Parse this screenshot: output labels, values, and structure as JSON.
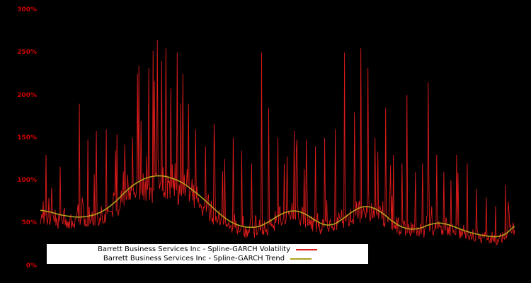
{
  "figure": {
    "background": "#000000"
  },
  "chart_data": {
    "type": "line",
    "title": "",
    "xlabel": "",
    "ylabel": "",
    "ylim": [
      0,
      300
    ],
    "y_unit": "percent",
    "grid": false,
    "legend_position": "lower center",
    "yticks": [
      {
        "label": "300%",
        "value": 300
      },
      {
        "label": "250%",
        "value": 250
      },
      {
        "label": "200%",
        "value": 200
      },
      {
        "label": "150%",
        "value": 150
      },
      {
        "label": "100%",
        "value": 100
      },
      {
        "label": "50%",
        "value": 50
      },
      {
        "label": "0%",
        "value": 0
      }
    ],
    "series": [
      {
        "name": "Barrett Business Services Inc - Spline-GARCH Volatility",
        "color": "#dd1b1b",
        "style": "jagged"
      },
      {
        "name": "Barrett Business Services Inc - Spline-GARCH Trend",
        "color": "#b0a11c",
        "style": "smooth"
      }
    ],
    "trend_points": [
      [
        0.0,
        65
      ],
      [
        0.02,
        63
      ],
      [
        0.04,
        60
      ],
      [
        0.06,
        58
      ],
      [
        0.08,
        57
      ],
      [
        0.1,
        58
      ],
      [
        0.12,
        61
      ],
      [
        0.14,
        67
      ],
      [
        0.16,
        76
      ],
      [
        0.18,
        87
      ],
      [
        0.2,
        96
      ],
      [
        0.22,
        102
      ],
      [
        0.24,
        105
      ],
      [
        0.26,
        105
      ],
      [
        0.28,
        102
      ],
      [
        0.3,
        97
      ],
      [
        0.32,
        89
      ],
      [
        0.34,
        80
      ],
      [
        0.36,
        70
      ],
      [
        0.38,
        60
      ],
      [
        0.4,
        52
      ],
      [
        0.42,
        47
      ],
      [
        0.44,
        45
      ],
      [
        0.46,
        46
      ],
      [
        0.48,
        51
      ],
      [
        0.5,
        58
      ],
      [
        0.52,
        63
      ],
      [
        0.54,
        64
      ],
      [
        0.56,
        60
      ],
      [
        0.58,
        53
      ],
      [
        0.6,
        48
      ],
      [
        0.62,
        49
      ],
      [
        0.64,
        56
      ],
      [
        0.66,
        64
      ],
      [
        0.68,
        69
      ],
      [
        0.7,
        68
      ],
      [
        0.72,
        62
      ],
      [
        0.74,
        53
      ],
      [
        0.76,
        46
      ],
      [
        0.78,
        43
      ],
      [
        0.8,
        44
      ],
      [
        0.82,
        48
      ],
      [
        0.84,
        50
      ],
      [
        0.86,
        48
      ],
      [
        0.88,
        44
      ],
      [
        0.9,
        40
      ],
      [
        0.92,
        37
      ],
      [
        0.94,
        35
      ],
      [
        0.96,
        34
      ],
      [
        0.98,
        37
      ],
      [
        1.0,
        46
      ]
    ],
    "volatility_model": {
      "n_points": 670,
      "seed": 1337,
      "band_low": 0.7,
      "band_high": 1.32,
      "spike_prob": 0.055,
      "spike_scale": 1.25,
      "min_value": 18,
      "major_spikes": [
        [
          0.012,
          130
        ],
        [
          0.042,
          116
        ],
        [
          0.082,
          190
        ],
        [
          0.1,
          148
        ],
        [
          0.118,
          158
        ],
        [
          0.139,
          160
        ],
        [
          0.158,
          135
        ],
        [
          0.178,
          142
        ],
        [
          0.195,
          150
        ],
        [
          0.212,
          170
        ],
        [
          0.228,
          232
        ],
        [
          0.238,
          252
        ],
        [
          0.247,
          265
        ],
        [
          0.255,
          240
        ],
        [
          0.265,
          255
        ],
        [
          0.275,
          208
        ],
        [
          0.288,
          250
        ],
        [
          0.3,
          225
        ],
        [
          0.312,
          190
        ],
        [
          0.328,
          160
        ],
        [
          0.348,
          140
        ],
        [
          0.368,
          130
        ],
        [
          0.388,
          125
        ],
        [
          0.407,
          150
        ],
        [
          0.425,
          135
        ],
        [
          0.445,
          120
        ],
        [
          0.467,
          250
        ],
        [
          0.482,
          185
        ],
        [
          0.5,
          150
        ],
        [
          0.52,
          128
        ],
        [
          0.54,
          135
        ],
        [
          0.56,
          148
        ],
        [
          0.58,
          140
        ],
        [
          0.6,
          150
        ],
        [
          0.622,
          160
        ],
        [
          0.642,
          250
        ],
        [
          0.662,
          180
        ],
        [
          0.676,
          255
        ],
        [
          0.691,
          232
        ],
        [
          0.705,
          150
        ],
        [
          0.728,
          185
        ],
        [
          0.745,
          130
        ],
        [
          0.762,
          120
        ],
        [
          0.773,
          200
        ],
        [
          0.79,
          110
        ],
        [
          0.805,
          120
        ],
        [
          0.818,
          215
        ],
        [
          0.835,
          130
        ],
        [
          0.85,
          110
        ],
        [
          0.865,
          100
        ],
        [
          0.878,
          130
        ],
        [
          0.9,
          120
        ],
        [
          0.92,
          90
        ],
        [
          0.94,
          80
        ],
        [
          0.96,
          70
        ],
        [
          0.98,
          95
        ]
      ]
    }
  },
  "legend": {
    "background": "#ffffff",
    "text_color": "#000000"
  }
}
